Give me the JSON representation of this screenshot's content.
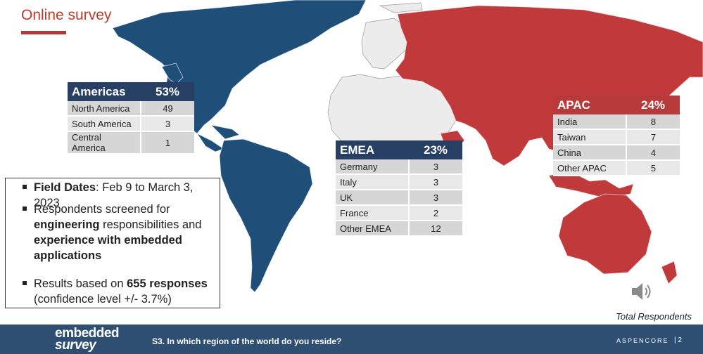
{
  "title": "Online survey",
  "regions": {
    "americas": {
      "name": "Americas",
      "percent": "53%",
      "rows": [
        {
          "label": "North America",
          "value": "49"
        },
        {
          "label": "South America",
          "value": "3"
        },
        {
          "label": "Central America",
          "value": "1"
        }
      ]
    },
    "emea": {
      "name": "EMEA",
      "percent": "23%",
      "rows": [
        {
          "label": "Germany",
          "value": "3"
        },
        {
          "label": "Italy",
          "value": "3"
        },
        {
          "label": "UK",
          "value": "3"
        },
        {
          "label": "France",
          "value": "2"
        },
        {
          "label": "Other EMEA",
          "value": "12"
        }
      ]
    },
    "apac": {
      "name": "APAC",
      "percent": "24%",
      "rows": [
        {
          "label": "India",
          "value": "8"
        },
        {
          "label": "Taiwan",
          "value": "7"
        },
        {
          "label": "China",
          "value": "4"
        },
        {
          "label": "Other APAC",
          "value": "5"
        }
      ]
    }
  },
  "info": {
    "field_dates_label": "Field Dates",
    "field_dates_value": ":  Feb 9 to March 3, 2023",
    "screened_pre": "Respondents screened for",
    "screened_bold1": "engineering",
    "screened_mid": " responsibilities and",
    "screened_bold2": "experience with embedded applications",
    "results_pre": "Results based on ",
    "results_bold": "655 responses",
    "results_post": "(confidence level +/- 3.7%)"
  },
  "total_label": "Total Respondents",
  "footer": {
    "logo_line1": "embedded",
    "logo_line2": "survey",
    "question": "S3. In which region of the world do you reside?",
    "brand": "ASPENCORE",
    "page": "|  2"
  },
  "icons": {
    "speaker": "speaker-icon"
  },
  "colors": {
    "americas": "#1f4e79",
    "emea": "#eeeeee",
    "apac": "#c0393b",
    "footer": "#2e4f72",
    "accent": "#c0392b"
  }
}
